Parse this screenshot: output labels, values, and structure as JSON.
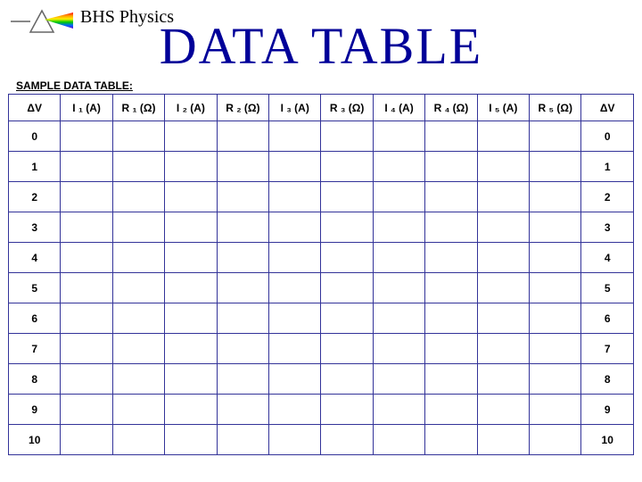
{
  "header": {
    "course": "BHS Physics",
    "title": "DATA TABLE",
    "subhead": "SAMPLE DATA TABLE:"
  },
  "table": {
    "border_color": "#333399",
    "columns": [
      "ΔV",
      "I ₁ (A)",
      "R ₁ (Ω)",
      "I ₂ (A)",
      "R ₂ (Ω)",
      "I ₃ (A)",
      "R ₃ (Ω)",
      "I ₄ (A)",
      "R ₄ (Ω)",
      "I ₅ (A)",
      "R ₅ (Ω)",
      "ΔV"
    ],
    "row_labels": [
      "0",
      "1",
      "2",
      "3",
      "4",
      "5",
      "6",
      "7",
      "8",
      "9",
      "10"
    ]
  },
  "colors": {
    "title": "#000099",
    "text": "#000000",
    "background": "#ffffff"
  }
}
